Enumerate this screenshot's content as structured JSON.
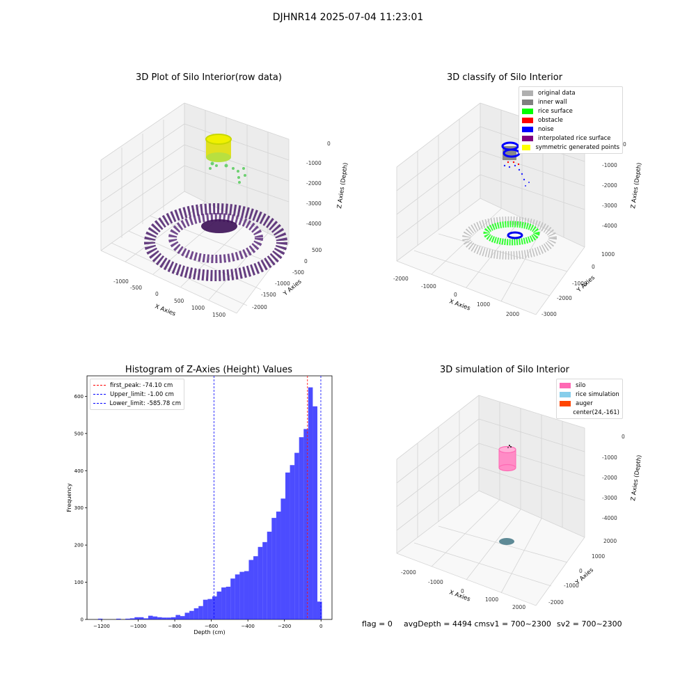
{
  "suptitle": "DJHNR14 2025-07-04 11:23:01",
  "panels": {
    "raw": {
      "title": "3D Plot of Silo Interior(row data)",
      "xlabel": "X Axies",
      "ylabel": "Y Axies",
      "zlabel": "Z Axies (Depth)",
      "xticks": [
        "-1000",
        "-500",
        "0",
        "500",
        "1000",
        "1500"
      ],
      "yticks": [
        "500",
        "0",
        "-500",
        "-1000",
        "-1500",
        "-2000"
      ],
      "zticks": [
        "0",
        "-1000",
        "-2000",
        "-3000",
        "-4000"
      ]
    },
    "classify": {
      "title": "3D classify of Silo Interior",
      "xlabel": "X Axies",
      "ylabel": "Y Axies",
      "zlabel": "Z Axies (Depth)",
      "xticks": [
        "-2000",
        "-1000",
        "0",
        "1000",
        "2000"
      ],
      "yticks": [
        "1000",
        "0",
        "-1000",
        "-2000",
        "-3000"
      ],
      "zticks": [
        "0",
        "-1000",
        "-2000",
        "-3000",
        "-4000"
      ],
      "legend": [
        {
          "label": "original data",
          "color": "#b0b0b0"
        },
        {
          "label": "inner wall",
          "color": "#808080"
        },
        {
          "label": "rice surface",
          "color": "#00ff00"
        },
        {
          "label": "obstacle",
          "color": "#ff0000"
        },
        {
          "label": "noise",
          "color": "#0000ff"
        },
        {
          "label": "interpolated rice surface",
          "color": "#800080"
        },
        {
          "label": "symmetric generated points",
          "color": "#ffff00"
        }
      ]
    },
    "simulation": {
      "title": "3D simulation of Silo Interior",
      "xlabel": "X Axies",
      "ylabel": "Y Axies",
      "zlabel": "Z Axies (Depth)",
      "xticks": [
        "-2000",
        "-1000",
        "0",
        "1000",
        "2000"
      ],
      "yticks": [
        "2000",
        "1000",
        "0",
        "-1000",
        "-2000"
      ],
      "zticks": [
        "0",
        "-1000",
        "-2000",
        "-3000",
        "-4000"
      ],
      "legend": [
        {
          "label": "silo",
          "color": "#ff69b4"
        },
        {
          "label": "rice simulation",
          "color": "#87ceeb"
        },
        {
          "label": "auger",
          "color": "#ff4500"
        },
        {
          "label": "center(24,-161)",
          "color": ""
        }
      ]
    }
  },
  "status": {
    "flag": "flag = 0",
    "avg": "avgDepth = 4494 cmsv1 = 700~2300",
    "sv2": "sv2 = 700~2300"
  },
  "chart_data": [
    {
      "type": "scatter",
      "panel": "raw",
      "title": "3D Plot of Silo Interior(row data)",
      "xlabel": "X Axies",
      "ylabel": "Y Axies",
      "zlabel": "Z Axies (Depth)",
      "xlim": [
        -1300,
        1800
      ],
      "ylim": [
        -2200,
        700
      ],
      "zlim": [
        -4500,
        200
      ],
      "series": [
        {
          "points": "ring at top (yellow-green)",
          "z_range": [
            -700,
            0
          ],
          "color": "#e8e800"
        },
        {
          "points": "circular pattern at bottom (purple)",
          "z_range": [
            -4500,
            -4200
          ],
          "color": "#4b1d6b"
        }
      ]
    },
    {
      "type": "scatter",
      "panel": "classify",
      "title": "3D classify of Silo Interior",
      "xlabel": "X Axies",
      "ylabel": "Y Axies",
      "zlabel": "Z Axies (Depth)",
      "xlim": [
        -2300,
        2300
      ],
      "ylim": [
        -3200,
        1400
      ],
      "zlim": [
        -4500,
        200
      ]
    },
    {
      "type": "bar",
      "panel": "histogram",
      "title": "Histogram of Z-Axies (Height) Values",
      "xlabel": "Depth (cm)",
      "ylabel": "Frequency",
      "xlim": [
        -1280,
        60
      ],
      "ylim": [
        0,
        655
      ],
      "xticks": [
        -1200,
        -1000,
        -800,
        -600,
        -400,
        -200,
        0
      ],
      "yticks": [
        0,
        100,
        200,
        300,
        400,
        500,
        600
      ],
      "bar_color": "#0000ff",
      "bins": [
        {
          "x0": -1220,
          "x1": -1195,
          "v": 2
        },
        {
          "x0": -1120,
          "x1": -1095,
          "v": 2
        },
        {
          "x0": -1070,
          "x1": -1045,
          "v": 2
        },
        {
          "x0": -1045,
          "x1": -1020,
          "v": 3
        },
        {
          "x0": -1020,
          "x1": -995,
          "v": 6
        },
        {
          "x0": -995,
          "x1": -970,
          "v": 6
        },
        {
          "x0": -970,
          "x1": -945,
          "v": 3
        },
        {
          "x0": -945,
          "x1": -920,
          "v": 10
        },
        {
          "x0": -920,
          "x1": -895,
          "v": 8
        },
        {
          "x0": -895,
          "x1": -870,
          "v": 6
        },
        {
          "x0": -870,
          "x1": -845,
          "v": 5
        },
        {
          "x0": -845,
          "x1": -820,
          "v": 5
        },
        {
          "x0": -820,
          "x1": -795,
          "v": 6
        },
        {
          "x0": -795,
          "x1": -770,
          "v": 12
        },
        {
          "x0": -770,
          "x1": -745,
          "v": 9
        },
        {
          "x0": -745,
          "x1": -720,
          "v": 18
        },
        {
          "x0": -720,
          "x1": -695,
          "v": 23
        },
        {
          "x0": -695,
          "x1": -670,
          "v": 30
        },
        {
          "x0": -670,
          "x1": -645,
          "v": 36
        },
        {
          "x0": -645,
          "x1": -620,
          "v": 53
        },
        {
          "x0": -620,
          "x1": -595,
          "v": 55
        },
        {
          "x0": -595,
          "x1": -570,
          "v": 62
        },
        {
          "x0": -570,
          "x1": -545,
          "v": 75
        },
        {
          "x0": -545,
          "x1": -520,
          "v": 86
        },
        {
          "x0": -520,
          "x1": -495,
          "v": 88
        },
        {
          "x0": -495,
          "x1": -470,
          "v": 110
        },
        {
          "x0": -470,
          "x1": -445,
          "v": 121
        },
        {
          "x0": -445,
          "x1": -420,
          "v": 128
        },
        {
          "x0": -420,
          "x1": -395,
          "v": 130
        },
        {
          "x0": -395,
          "x1": -370,
          "v": 160
        },
        {
          "x0": -370,
          "x1": -345,
          "v": 170
        },
        {
          "x0": -345,
          "x1": -320,
          "v": 195
        },
        {
          "x0": -320,
          "x1": -295,
          "v": 208
        },
        {
          "x0": -295,
          "x1": -270,
          "v": 236
        },
        {
          "x0": -270,
          "x1": -245,
          "v": 273
        },
        {
          "x0": -245,
          "x1": -220,
          "v": 290
        },
        {
          "x0": -220,
          "x1": -195,
          "v": 325
        },
        {
          "x0": -195,
          "x1": -170,
          "v": 395
        },
        {
          "x0": -170,
          "x1": -145,
          "v": 415
        },
        {
          "x0": -145,
          "x1": -120,
          "v": 448
        },
        {
          "x0": -120,
          "x1": -95,
          "v": 490
        },
        {
          "x0": -95,
          "x1": -70,
          "v": 512
        },
        {
          "x0": -70,
          "x1": -45,
          "v": 624
        },
        {
          "x0": -45,
          "x1": -20,
          "v": 573
        },
        {
          "x0": -20,
          "x1": 5,
          "v": 48
        }
      ],
      "vlines": [
        {
          "x": -74.1,
          "label": "first_peak: -74.10 cm",
          "color": "#ff0000"
        },
        {
          "x": -1.0,
          "label": "Upper_limit: -1.00 cm",
          "color": "#0000ff"
        },
        {
          "x": -585.78,
          "label": "Lower_limit: -585.78 cm",
          "color": "#0000ff"
        }
      ]
    },
    {
      "type": "scatter",
      "panel": "simulation",
      "title": "3D simulation of Silo Interior",
      "xlabel": "X Axies",
      "ylabel": "Y Axies",
      "zlabel": "Z Axies (Depth)",
      "xlim": [
        -2300,
        2300
      ],
      "ylim": [
        -2300,
        2300
      ],
      "zlim": [
        -4500,
        200
      ]
    }
  ]
}
